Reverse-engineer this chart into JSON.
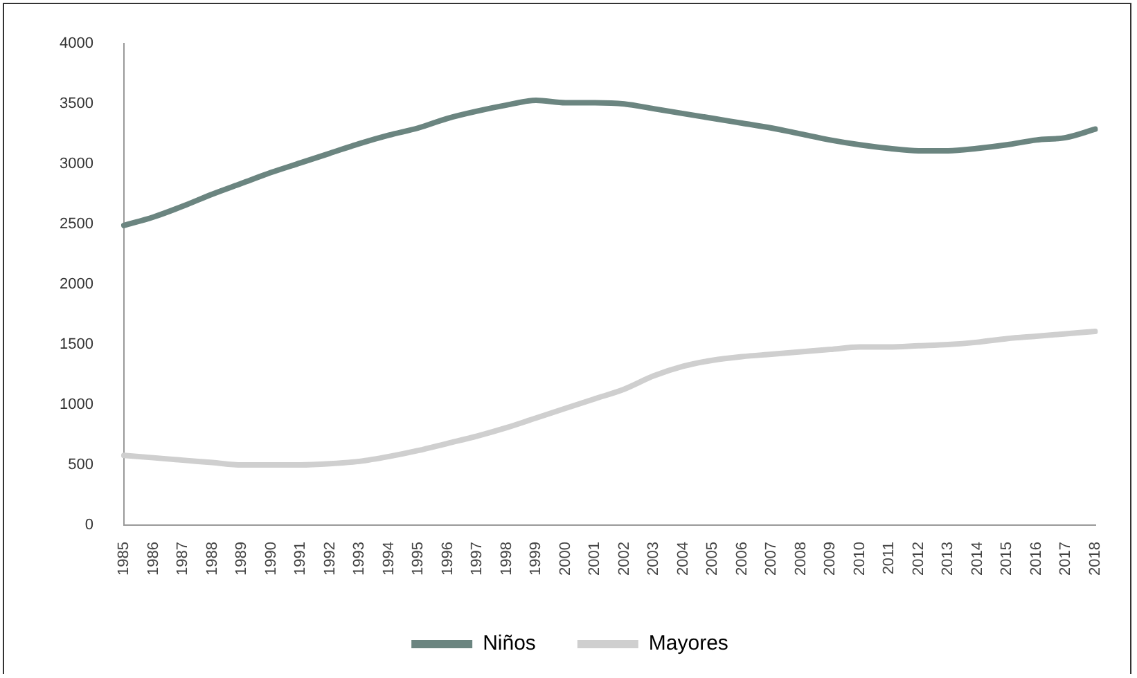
{
  "chart_data": {
    "type": "line",
    "categories": [
      "1985",
      "1986",
      "1987",
      "1988",
      "1989",
      "1990",
      "1991",
      "1992",
      "1993",
      "1994",
      "1995",
      "1996",
      "1997",
      "1998",
      "1999",
      "2000",
      "2001",
      "2002",
      "2003",
      "2004",
      "2005",
      "2006",
      "2007",
      "2008",
      "2009",
      "2010",
      "2011",
      "2012",
      "2013",
      "2014",
      "2015",
      "2016",
      "2017",
      "2018"
    ],
    "series": [
      {
        "name": "Niños",
        "color": "#6b8580",
        "values": [
          2490,
          2560,
          2650,
          2750,
          2840,
          2930,
          3010,
          3090,
          3170,
          3240,
          3300,
          3380,
          3440,
          3490,
          3530,
          3510,
          3510,
          3500,
          3460,
          3420,
          3380,
          3340,
          3300,
          3250,
          3200,
          3160,
          3130,
          3110,
          3110,
          3130,
          3160,
          3200,
          3220,
          3290
        ]
      },
      {
        "name": "Mayores",
        "color": "#cfcfcf",
        "values": [
          580,
          560,
          540,
          520,
          500,
          500,
          500,
          510,
          530,
          570,
          620,
          680,
          740,
          810,
          890,
          970,
          1050,
          1130,
          1240,
          1320,
          1370,
          1400,
          1420,
          1440,
          1460,
          1480,
          1480,
          1490,
          1500,
          1520,
          1550,
          1570,
          1590,
          1610
        ]
      }
    ],
    "ylim": [
      0,
      4000
    ],
    "yticks": [
      0,
      500,
      1000,
      1500,
      2000,
      2500,
      3000,
      3500,
      4000
    ],
    "grid": false,
    "legend": "bottom",
    "marker": "none",
    "line_style": "solid"
  }
}
